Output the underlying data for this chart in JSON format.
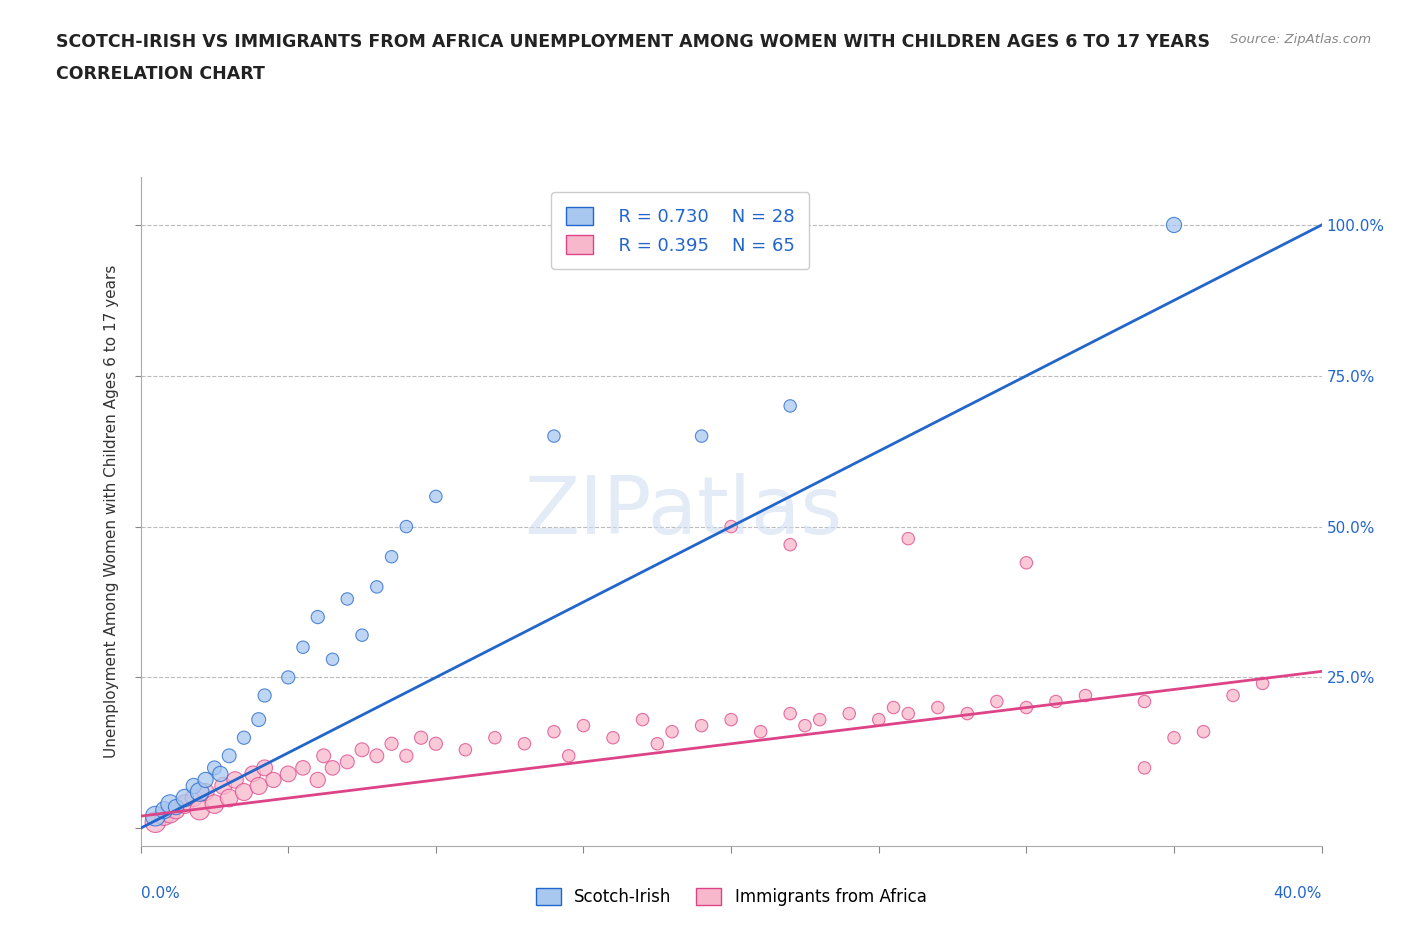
{
  "title_line1": "SCOTCH-IRISH VS IMMIGRANTS FROM AFRICA UNEMPLOYMENT AMONG WOMEN WITH CHILDREN AGES 6 TO 17 YEARS",
  "title_line2": "CORRELATION CHART",
  "source_text": "Source: ZipAtlas.com",
  "ylabel": "Unemployment Among Women with Children Ages 6 to 17 years",
  "xmin": 0.0,
  "xmax": 0.4,
  "ymin": -0.03,
  "ymax": 1.08,
  "blue_R": 0.73,
  "blue_N": 28,
  "pink_R": 0.395,
  "pink_N": 65,
  "legend_label_blue": "Scotch-Irish",
  "legend_label_pink": "Immigrants from Africa",
  "blue_color": "#a8c8f0",
  "blue_line_color": "#2266cc",
  "pink_color": "#f8b8cc",
  "pink_line_color": "#dd4488",
  "watermark": "ZIPatlas",
  "background_color": "#ffffff",
  "grid_color": "#bbbbbb",
  "blue_trend_x0": 0.0,
  "blue_trend_y0": 0.0,
  "blue_trend_x1": 0.4,
  "blue_trend_y1": 1.0,
  "pink_trend_x0": 0.0,
  "pink_trend_y0": 0.02,
  "pink_trend_x1": 0.4,
  "pink_trend_y1": 0.26,
  "blue_scatter_x": [
    0.005,
    0.008,
    0.01,
    0.012,
    0.015,
    0.018,
    0.02,
    0.022,
    0.025,
    0.027,
    0.03,
    0.035,
    0.04,
    0.042,
    0.05,
    0.055,
    0.06,
    0.065,
    0.07,
    0.075,
    0.08,
    0.085,
    0.09,
    0.1,
    0.14,
    0.19,
    0.22,
    0.35
  ],
  "blue_scatter_y": [
    0.02,
    0.03,
    0.04,
    0.035,
    0.05,
    0.07,
    0.06,
    0.08,
    0.1,
    0.09,
    0.12,
    0.15,
    0.18,
    0.22,
    0.25,
    0.3,
    0.35,
    0.28,
    0.38,
    0.32,
    0.4,
    0.45,
    0.5,
    0.55,
    0.65,
    0.65,
    0.7,
    1.0
  ],
  "blue_scatter_sizes": [
    200,
    150,
    180,
    120,
    160,
    120,
    180,
    120,
    100,
    120,
    100,
    90,
    100,
    90,
    90,
    80,
    90,
    80,
    80,
    80,
    80,
    80,
    80,
    80,
    80,
    80,
    80,
    120
  ],
  "pink_scatter_x": [
    0.005,
    0.008,
    0.01,
    0.012,
    0.015,
    0.018,
    0.02,
    0.022,
    0.025,
    0.028,
    0.03,
    0.032,
    0.035,
    0.038,
    0.04,
    0.042,
    0.045,
    0.05,
    0.055,
    0.06,
    0.062,
    0.065,
    0.07,
    0.075,
    0.08,
    0.085,
    0.09,
    0.095,
    0.1,
    0.11,
    0.12,
    0.13,
    0.14,
    0.145,
    0.15,
    0.16,
    0.17,
    0.175,
    0.18,
    0.19,
    0.2,
    0.21,
    0.22,
    0.225,
    0.23,
    0.24,
    0.25,
    0.255,
    0.26,
    0.27,
    0.28,
    0.29,
    0.3,
    0.31,
    0.32,
    0.34,
    0.35,
    0.36,
    0.37,
    0.38,
    0.22,
    0.26,
    0.3,
    0.34,
    0.2
  ],
  "pink_scatter_y": [
    0.01,
    0.02,
    0.025,
    0.03,
    0.04,
    0.05,
    0.03,
    0.06,
    0.04,
    0.07,
    0.05,
    0.08,
    0.06,
    0.09,
    0.07,
    0.1,
    0.08,
    0.09,
    0.1,
    0.08,
    0.12,
    0.1,
    0.11,
    0.13,
    0.12,
    0.14,
    0.12,
    0.15,
    0.14,
    0.13,
    0.15,
    0.14,
    0.16,
    0.12,
    0.17,
    0.15,
    0.18,
    0.14,
    0.16,
    0.17,
    0.18,
    0.16,
    0.19,
    0.17,
    0.18,
    0.19,
    0.18,
    0.2,
    0.19,
    0.2,
    0.19,
    0.21,
    0.2,
    0.21,
    0.22,
    0.21,
    0.15,
    0.16,
    0.22,
    0.24,
    0.47,
    0.48,
    0.44,
    0.1,
    0.5
  ],
  "pink_scatter_sizes": [
    220,
    180,
    200,
    160,
    180,
    150,
    200,
    150,
    180,
    150,
    160,
    140,
    150,
    130,
    150,
    130,
    120,
    130,
    110,
    120,
    100,
    110,
    100,
    100,
    100,
    90,
    90,
    90,
    90,
    80,
    80,
    80,
    80,
    80,
    80,
    80,
    80,
    80,
    80,
    80,
    80,
    80,
    80,
    80,
    80,
    80,
    80,
    80,
    80,
    80,
    80,
    80,
    80,
    80,
    80,
    80,
    80,
    80,
    80,
    80,
    80,
    80,
    80,
    80,
    80
  ]
}
